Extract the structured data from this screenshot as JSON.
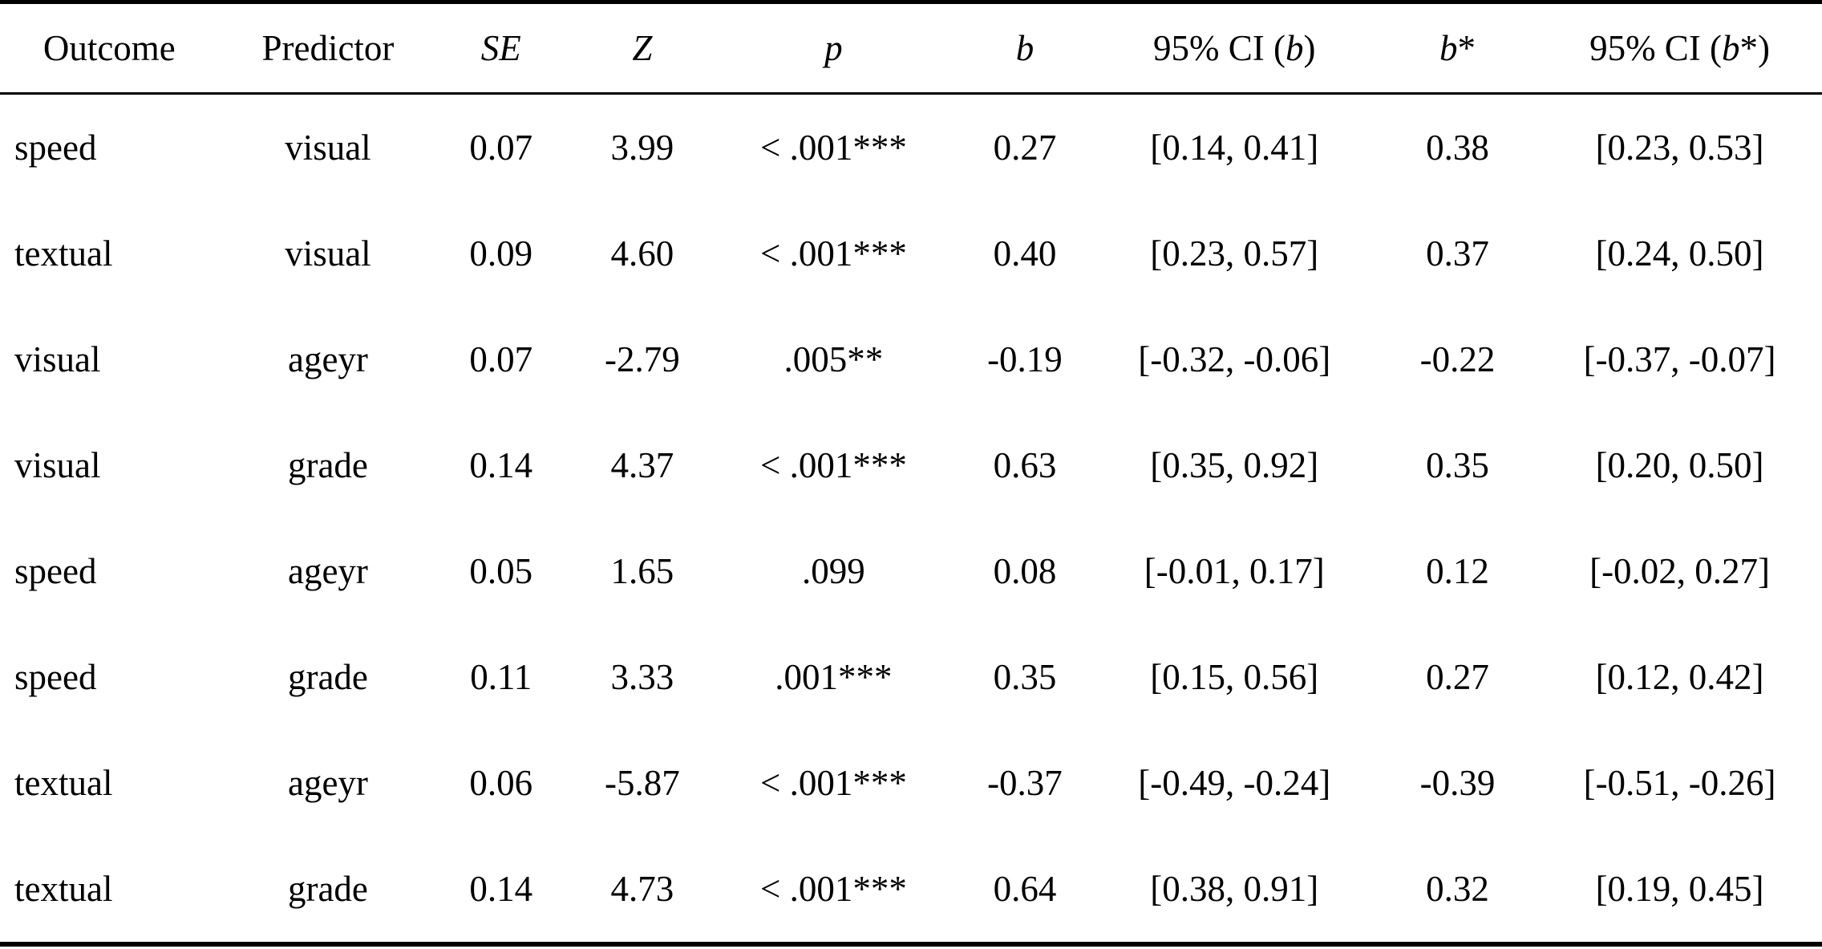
{
  "table": {
    "title": "regression-results-table",
    "headers": {
      "outcome": "Outcome",
      "predictor": "Predictor",
      "se": "SE",
      "z": "Z",
      "p": "p",
      "b": "b",
      "ci_prefix": "95% CI (",
      "close_paren": ")",
      "star": "*",
      "star_close_paren": "*)"
    },
    "col_keys": [
      "outcome",
      "predictor",
      "se",
      "z",
      "p",
      "b",
      "ci_b",
      "b_star",
      "ci_b_star"
    ],
    "rows": [
      [
        "speed",
        "visual",
        "0.07",
        "3.99",
        "< .001***",
        "0.27",
        "[0.14, 0.41]",
        "0.38",
        "[0.23, 0.53]"
      ],
      [
        "textual",
        "visual",
        "0.09",
        "4.60",
        "< .001***",
        "0.40",
        "[0.23, 0.57]",
        "0.37",
        "[0.24, 0.50]"
      ],
      [
        "visual",
        "ageyr",
        "0.07",
        "-2.79",
        ".005**",
        "-0.19",
        "[-0.32, -0.06]",
        "-0.22",
        "[-0.37, -0.07]"
      ],
      [
        "visual",
        "grade",
        "0.14",
        "4.37",
        "< .001***",
        "0.63",
        "[0.35, 0.92]",
        "0.35",
        "[0.20, 0.50]"
      ],
      [
        "speed",
        "ageyr",
        "0.05",
        "1.65",
        ".099",
        "0.08",
        "[-0.01, 0.17]",
        "0.12",
        "[-0.02, 0.27]"
      ],
      [
        "speed",
        "grade",
        "0.11",
        "3.33",
        ".001***",
        "0.35",
        "[0.15, 0.56]",
        "0.27",
        "[0.12, 0.42]"
      ],
      [
        "textual",
        "ageyr",
        "0.06",
        "-5.87",
        "< .001***",
        "-0.37",
        "[-0.49, -0.24]",
        "-0.39",
        "[-0.51, -0.26]"
      ],
      [
        "textual",
        "grade",
        "0.14",
        "4.73",
        "< .001***",
        "0.64",
        "[0.38, 0.91]",
        "0.32",
        "[0.19, 0.45]"
      ]
    ],
    "colors": {
      "text": "#000000",
      "background": "#ffffff",
      "rule": "#000000"
    }
  }
}
